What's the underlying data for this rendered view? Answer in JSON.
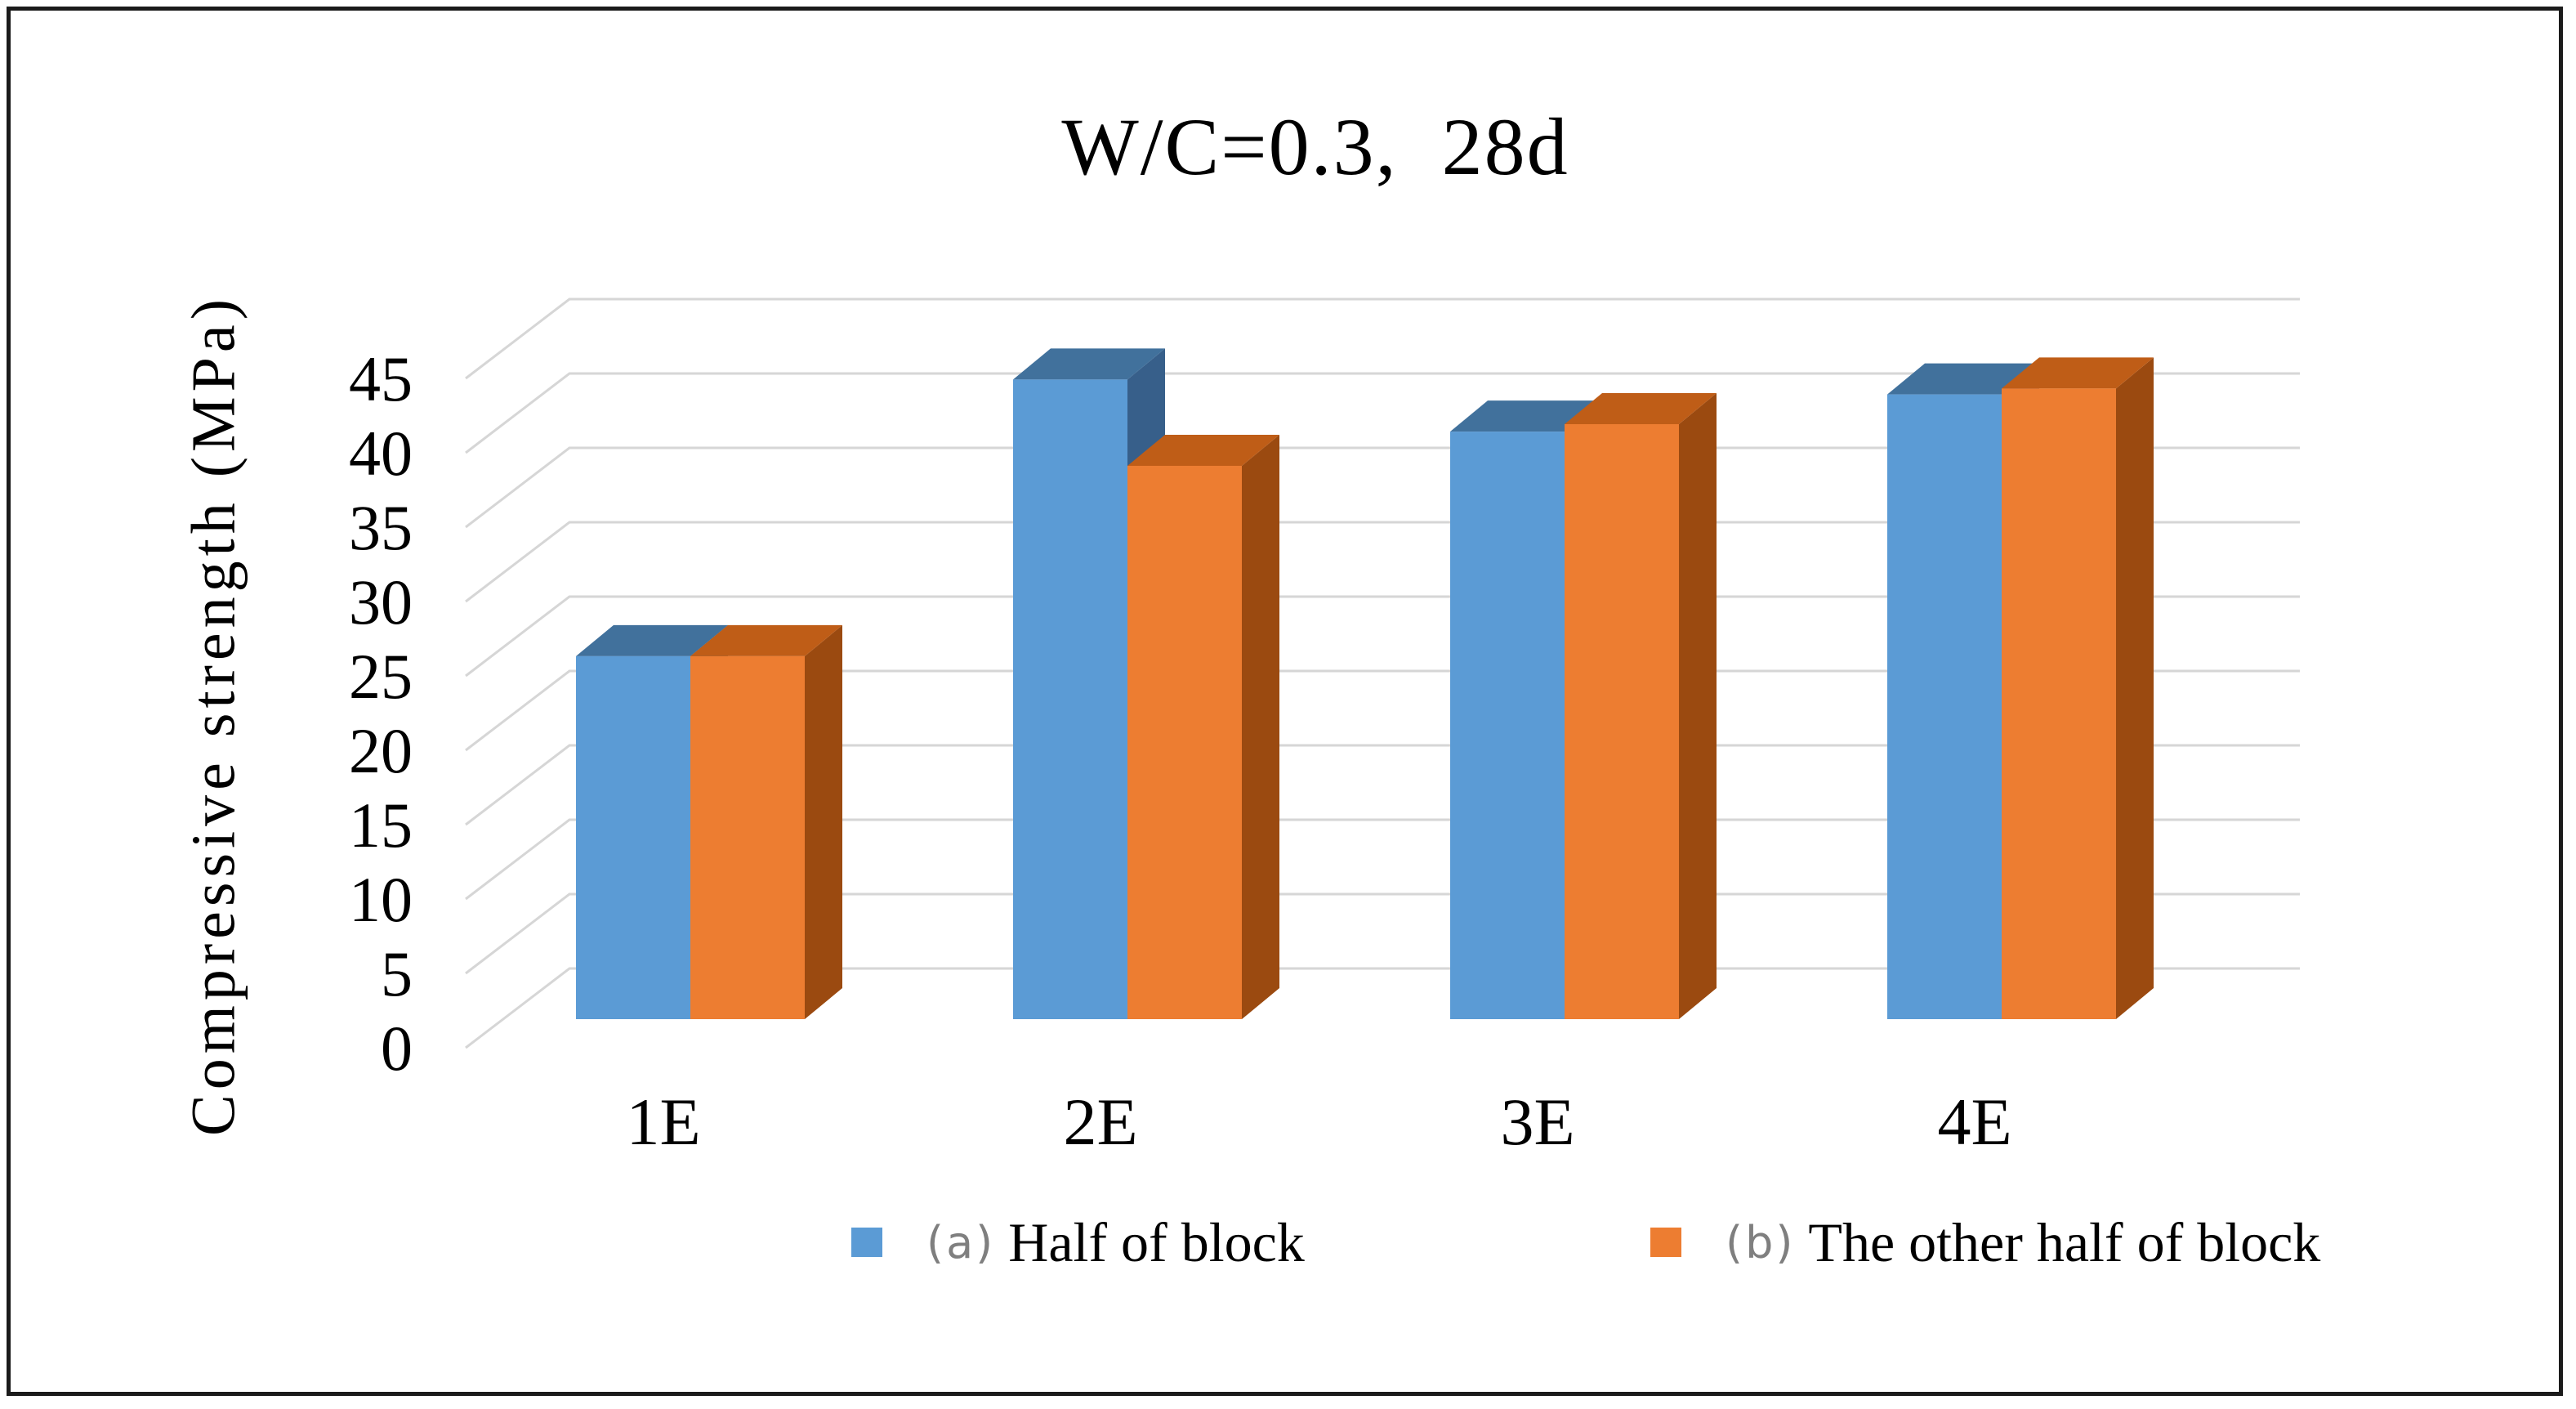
{
  "chart_data": {
    "type": "bar",
    "variant": "3d-clustered-column",
    "title": "W/C=0.3,  28d",
    "categories": [
      "1E",
      "2E",
      "3E",
      "4E"
    ],
    "series": [
      {
        "prefix": "(a)",
        "label": "Half of block",
        "color": "#5B9BD5",
        "color_top": "#41719C",
        "color_side": "#375F8A",
        "values": [
          24.4,
          43.0,
          39.5,
          42.0
        ]
      },
      {
        "prefix": "(b)",
        "label": "The other half of block",
        "color": "#ED7D31",
        "color_top": "#BF5D17",
        "color_side": "#9B4A10",
        "values": [
          24.4,
          37.2,
          40.0,
          42.4
        ]
      }
    ],
    "xlabel": "",
    "ylabel": "Compressive strength (MPa)",
    "yticks": [
      0,
      5,
      10,
      15,
      20,
      25,
      30,
      35,
      40,
      45
    ],
    "ylim": [
      0,
      45
    ],
    "grid": true,
    "grid_color": "#D6D6D6",
    "legend_position": "bottom"
  }
}
